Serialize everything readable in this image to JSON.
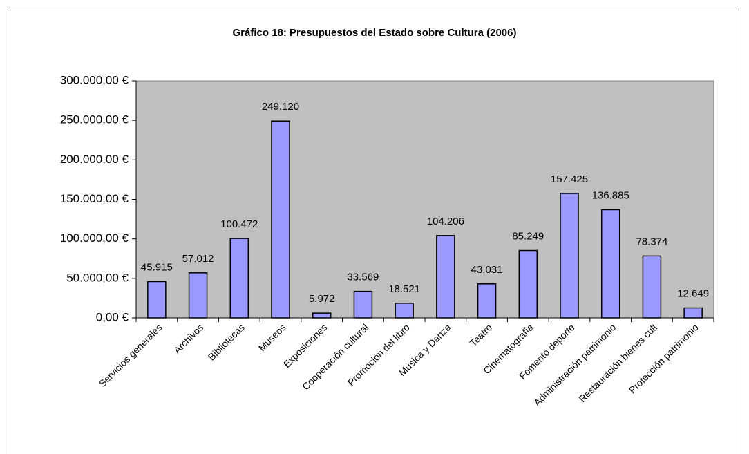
{
  "chart_data": {
    "type": "bar",
    "title": "Gráfico 18: Presupuestos del Estado sobre Cultura (2006)",
    "categories": [
      "Servicios generales",
      "Archivos",
      "Bibliotecas",
      "Museos",
      "Exposiciones",
      "Cooperación cultural",
      "Promoción del libro",
      "Música y Danza",
      "Teatro",
      "Cinematografía",
      "Fomento deporte",
      "Administración patrimonio",
      "Restauración bienes cult",
      "Protección patrimonio"
    ],
    "values": [
      45915,
      57012,
      100472,
      249120,
      5972,
      33569,
      18521,
      104206,
      43031,
      85249,
      157425,
      136885,
      78374,
      12649
    ],
    "value_labels": [
      "45.915",
      "57.012",
      "100.472",
      "249.120",
      "5.972",
      "33.569",
      "18.521",
      "104.206",
      "43.031",
      "85.249",
      "157.425",
      "136.885",
      "78.374",
      "12.649"
    ],
    "color": "#9999ff",
    "plot_background": "#c0c0c0",
    "ylim": [
      0,
      300000
    ],
    "yticks": [
      {
        "value": 0,
        "label": "0,00 €"
      },
      {
        "value": 50000,
        "label": "50.000,00 €"
      },
      {
        "value": 100000,
        "label": "100.000,00 €"
      },
      {
        "value": 150000,
        "label": "150.000,00 €"
      },
      {
        "value": 200000,
        "label": "200.000,00 €"
      },
      {
        "value": 250000,
        "label": "250.000,00 €"
      },
      {
        "value": 300000,
        "label": "300.000,00 €"
      }
    ],
    "grid": false
  }
}
